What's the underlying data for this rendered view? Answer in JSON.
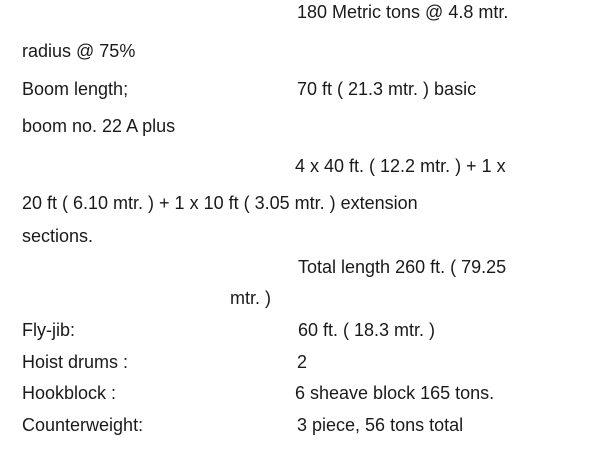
{
  "lines": {
    "capacity_value": "180 Metric tons @ 4.8 mtr.",
    "capacity_cont": "radius @ 75%",
    "boom_label": "Boom length;",
    "boom_value": "70 ft ( 21.3 mtr. ) basic",
    "boom_cont": "boom no. 22 A  plus",
    "ext_value": "4 x 40 ft. ( 12.2 mtr. )  + 1 x",
    "ext_cont": "20 ft ( 6.10 mtr. ) + 1 x 10 ft ( 3.05 mtr. )  extension",
    "ext_cont2": "sections.",
    "total_value": "Total length 260 ft.  ( 79.25",
    "total_cont": "mtr. )",
    "flyjib_label": "Fly-jib:",
    "flyjib_value": "60 ft.  ( 18.3 mtr. )",
    "hoist_label": "Hoist drums :",
    "hoist_value": "2",
    "hook_label": "Hookblock :",
    "hook_value": "6 sheave block 165 tons.",
    "cw_label": "Counterweight:",
    "cw_value": "3 piece, 56 tons total"
  }
}
